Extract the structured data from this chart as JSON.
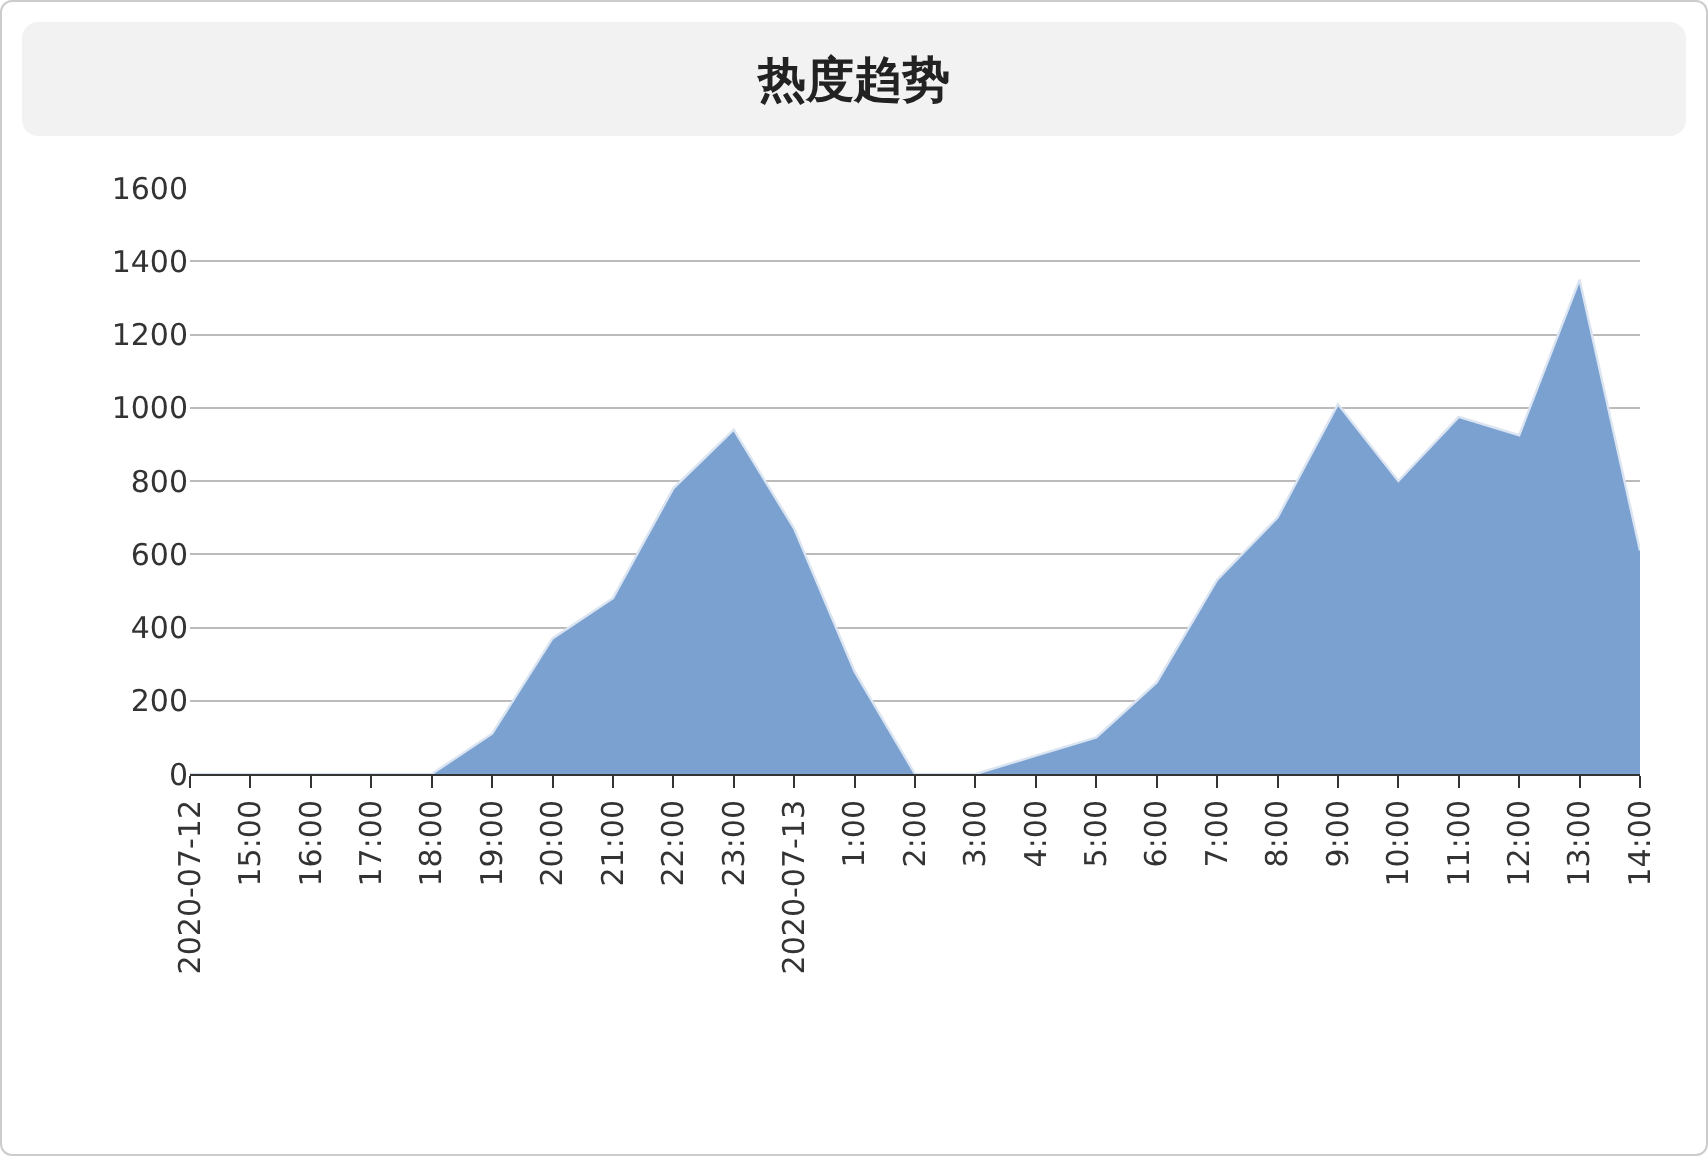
{
  "chart_data": {
    "type": "area",
    "title": "热度趋势",
    "categories": [
      "2020-07-12",
      "15:00",
      "16:00",
      "17:00",
      "18:00",
      "19:00",
      "20:00",
      "21:00",
      "22:00",
      "23:00",
      "2020-07-13",
      "1:00",
      "2:00",
      "3:00",
      "4:00",
      "5:00",
      "6:00",
      "7:00",
      "8:00",
      "9:00",
      "10:00",
      "11:00",
      "12:00",
      "13:00",
      "14:00"
    ],
    "series": [
      {
        "color": "#7ba1d0",
        "values": [
          0,
          0,
          0,
          0,
          0,
          110,
          370,
          480,
          780,
          940,
          670,
          280,
          0,
          0,
          50,
          100,
          250,
          530,
          700,
          1010,
          800,
          975,
          925,
          1350,
          610
        ]
      }
    ],
    "ylim": [
      0,
      1600
    ],
    "yticks": [
      0,
      200,
      400,
      600,
      800,
      1000,
      1200,
      1400,
      1600
    ],
    "grid": "y",
    "marker": "none"
  }
}
